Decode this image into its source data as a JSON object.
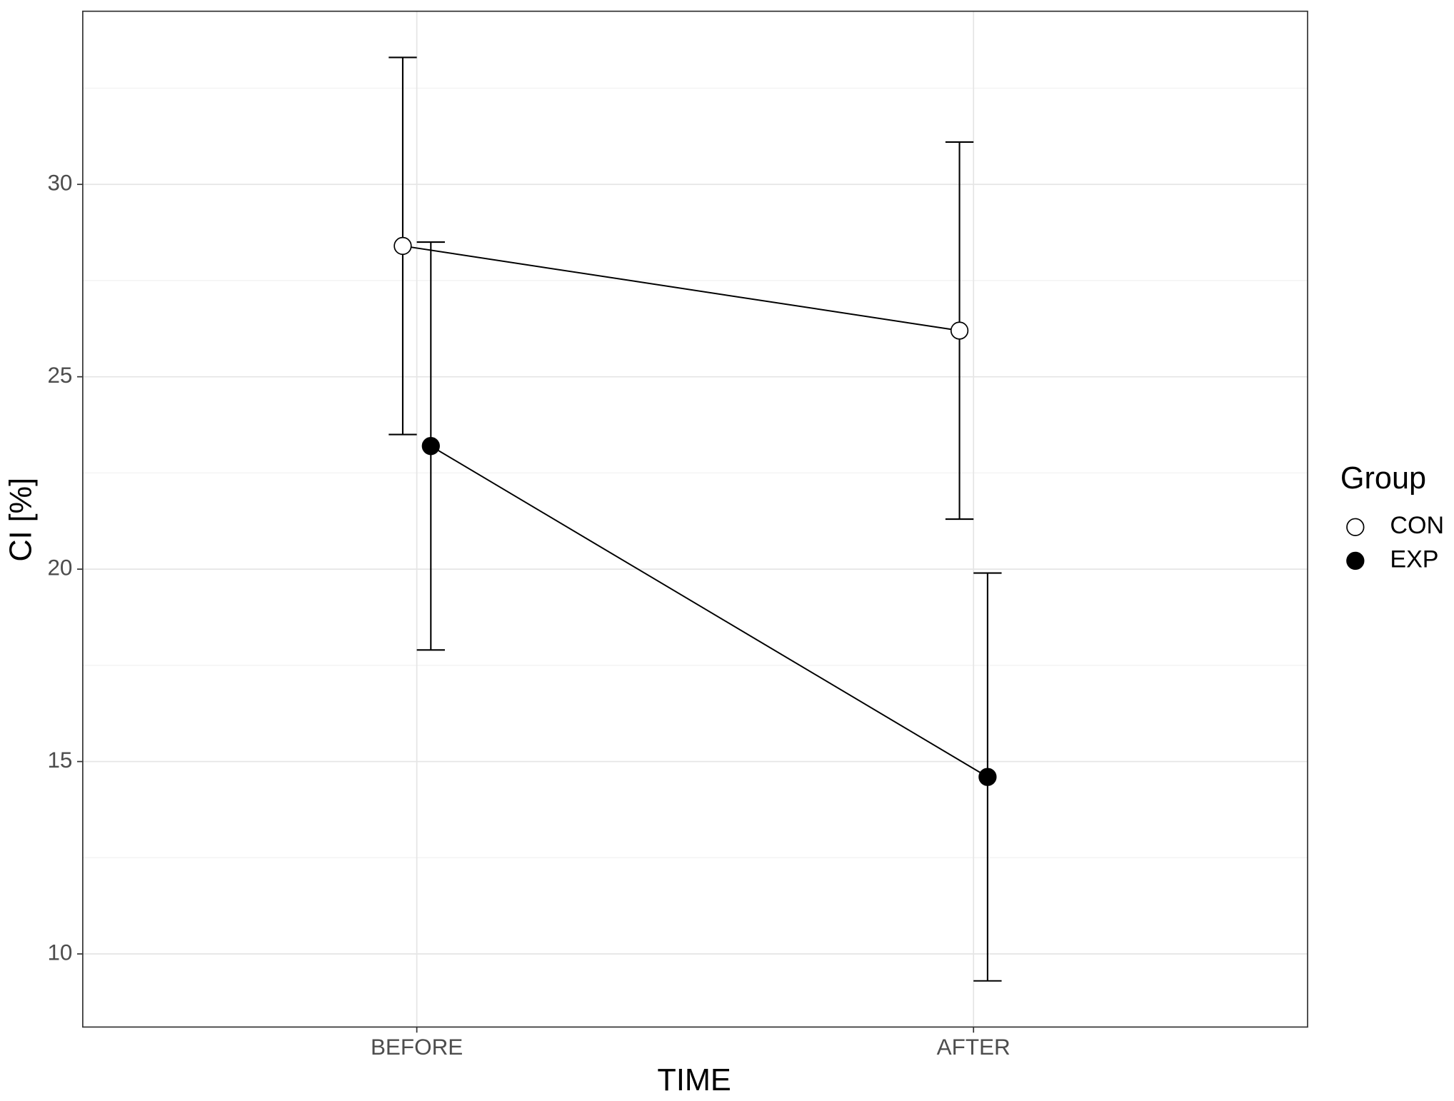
{
  "chart_data": {
    "type": "line",
    "x_label": "TIME",
    "y_label": "CI [%]",
    "categories": [
      "BEFORE",
      "AFTER"
    ],
    "series": [
      {
        "name": "CON",
        "color": "#ffffff",
        "values": [
          28.4,
          26.2
        ],
        "errors": [
          4.9,
          4.9
        ]
      },
      {
        "name": "EXP",
        "color": "#000000",
        "values": [
          23.2,
          14.6
        ],
        "errors": [
          5.3,
          5.3
        ]
      }
    ],
    "ylim": [
      8.1,
      34.5
    ],
    "yticks": [
      10,
      15,
      20,
      25,
      30
    ],
    "grid": true,
    "legend_title": "Group",
    "legend": "right"
  }
}
